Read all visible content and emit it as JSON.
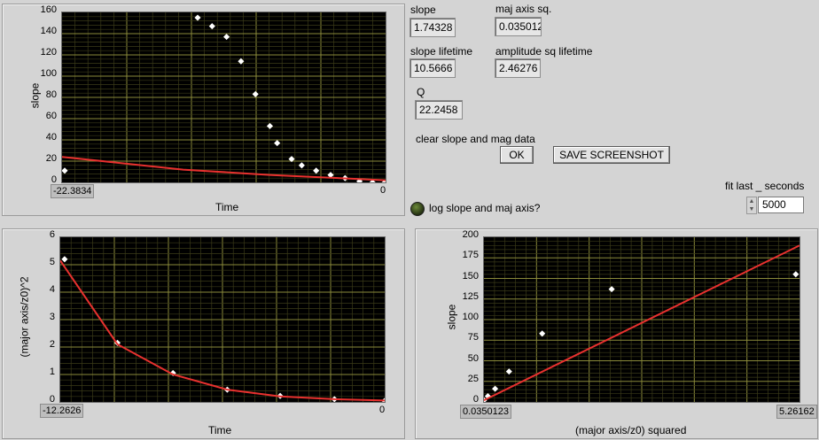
{
  "plot1": {
    "ylabel": "slope",
    "xlabel": "Time",
    "xmin_label": "-22.3834",
    "xmax_label": "0",
    "yticks": [
      "160",
      "140",
      "120",
      "100",
      "80",
      "60",
      "40",
      "20",
      "0"
    ]
  },
  "plot2": {
    "ylabel": "(major axis/z0)^2",
    "xlabel": "Time",
    "xmin_label": "-12.2626",
    "xmax_label": "0",
    "yticks": [
      "6",
      "5",
      "4",
      "3",
      "2",
      "1",
      "0"
    ]
  },
  "plot3": {
    "ylabel": "slope",
    "xlabel": "(major axis/z0) squared",
    "xmin_label": "0.0350123",
    "xmax_label": "5.26162",
    "yticks": [
      "200",
      "175",
      "150",
      "125",
      "100",
      "75",
      "50",
      "25",
      "0"
    ]
  },
  "indicators": {
    "slope_label": "slope",
    "slope_value": "1.74328",
    "maj_axis_sq_label": "maj axis sq.",
    "maj_axis_sq_value": "0.035012",
    "slope_lifetime_label": "slope lifetime",
    "slope_lifetime_value": "10.5666",
    "amp_sq_lifetime_label": "amplitude sq lifetime",
    "amp_sq_lifetime_value": "2.46276",
    "q_label": "Q",
    "q_value": "22.2458"
  },
  "controls": {
    "clear_label": "clear slope and mag data",
    "ok_button": "OK",
    "save_button": "SAVE SCREENSHOT",
    "log_label": "log slope and maj axis?",
    "fit_label": "fit last _ seconds",
    "fit_value": "5000"
  },
  "colors": {
    "fit_line": "#e8312f",
    "grid": "#7c7c2e",
    "plot_bg": "#000000",
    "marker": "#ffffff"
  },
  "chart_data": [
    {
      "type": "scatter",
      "title": "",
      "xlabel": "Time",
      "ylabel": "slope",
      "xlim": [
        -22.3834,
        0
      ],
      "ylim": [
        0,
        160
      ],
      "series": [
        {
          "values_x": [
            -22.2,
            -13.0,
            -12.0,
            -11.0,
            -10.0,
            -9.0,
            -8.0,
            -7.5,
            -6.5,
            -5.8,
            -4.8,
            -3.8,
            -2.8,
            -1.8,
            -0.9,
            -0.05
          ],
          "values_y": [
            11,
            155,
            147,
            137,
            114,
            83,
            53,
            37,
            22,
            16,
            11,
            7,
            4,
            1,
            0,
            0
          ]
        },
        {
          "values_x": [
            -22.3834,
            -14,
            -8,
            -4,
            0
          ],
          "values_y": [
            24,
            12,
            7,
            4.5,
            2
          ]
        }
      ]
    },
    {
      "type": "line",
      "title": "",
      "xlabel": "Time",
      "ylabel": "(major axis/z0)^2",
      "xlim": [
        -12.2626,
        0
      ],
      "ylim": [
        0,
        6
      ],
      "series": [
        {
          "values_x": [
            -12.1,
            -10.1,
            -8.0,
            -5.95,
            -3.95,
            -1.9,
            0
          ],
          "values_y": [
            5.2,
            2.15,
            1.05,
            0.45,
            0.22,
            0.1,
            0.04
          ]
        },
        {
          "values_x": [
            -12.2626,
            -10.1,
            -8.0,
            -5.95,
            -3.95,
            -1.9,
            0
          ],
          "values_y": [
            5.15,
            2.1,
            1.0,
            0.45,
            0.2,
            0.1,
            0.05
          ]
        }
      ]
    },
    {
      "type": "scatter",
      "title": "",
      "xlabel": "(major axis/z0) squared",
      "ylabel": "slope",
      "xlim": [
        0.0350123,
        5.26162
      ],
      "ylim": [
        0,
        200
      ],
      "series": [
        {
          "values_x": [
            0.035,
            0.1,
            0.22,
            0.45,
            1.0,
            2.15,
            5.2
          ],
          "values_y": [
            2,
            7,
            16,
            37,
            83,
            137,
            155
          ]
        },
        {
          "values_x": [
            0.0350123,
            5.26162
          ],
          "values_y": [
            2,
            190
          ]
        }
      ]
    }
  ]
}
